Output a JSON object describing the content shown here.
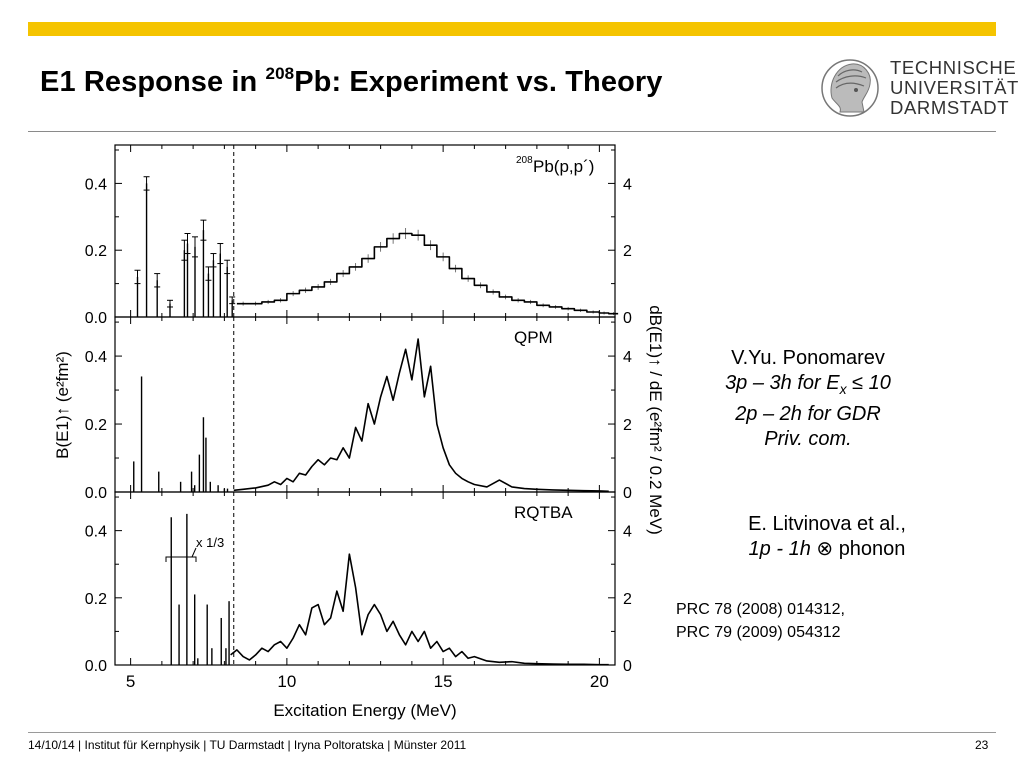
{
  "slide": {
    "title_pre": "E1 Response in ",
    "title_sup": "208",
    "title_post": "Pb: Experiment vs. Theory",
    "footer": "14/10/14 | Institut für Kernphysik | TU Darmstadt | Iryna Poltoratska | Münster 2011",
    "page": "23",
    "accent_color": "#f5c400"
  },
  "logo": {
    "icon": "athena-head-icon",
    "lines": [
      "TECHNISCHE",
      "UNIVERSITÄT",
      "DARMSTADT"
    ]
  },
  "notes": {
    "ponomarev": {
      "name": "V.Yu. Ponomarev",
      "line2_pre": "3p – 3h for E",
      "line2_sub": "x",
      "line2_post": " ≤ 10",
      "line3": "2p – 2h for GDR",
      "line4": "Priv. com."
    },
    "litvinova": {
      "name": "E. Litvinova et al.,",
      "line2_italic": "1p - 1h",
      "line2_symbol": " ⊗ ",
      "line2_post": "phonon"
    },
    "refs": [
      "PRC 78 (2008) 014312,",
      "PRC 79 (2009) 054312"
    ]
  },
  "chart_data": {
    "type": "bar",
    "xlabel": "Excitation Energy (MeV)",
    "ylabel_left": "B(E1)↑ (e²fm²)",
    "ylabel_right": "dB(E1)↑ / dE  (e²fm² / 0.2 MeV)",
    "xlim": [
      4.5,
      20.5
    ],
    "xticks": [
      "5",
      "10",
      "15",
      "20"
    ],
    "ylim_left": [
      0,
      0.5
    ],
    "ylim_right": [
      0,
      5
    ],
    "yticks_left": [
      "0.0",
      "0.2",
      "0.4"
    ],
    "yticks_right": [
      "0",
      "2",
      "4"
    ],
    "threshold_energy": 8.3,
    "panels": [
      {
        "label_sup": "208",
        "label": "Pb(p,p´)",
        "discrete_bars": [
          {
            "x": 5.22,
            "y": 0.12,
            "err": 0.02
          },
          {
            "x": 5.51,
            "y": 0.4,
            "err": 0.02
          },
          {
            "x": 5.85,
            "y": 0.11,
            "err": 0.02
          },
          {
            "x": 6.26,
            "y": 0.04,
            "err": 0.01
          },
          {
            "x": 6.72,
            "y": 0.2,
            "err": 0.03
          },
          {
            "x": 6.82,
            "y": 0.22,
            "err": 0.03
          },
          {
            "x": 7.06,
            "y": 0.21,
            "err": 0.03
          },
          {
            "x": 7.33,
            "y": 0.26,
            "err": 0.03
          },
          {
            "x": 7.49,
            "y": 0.13,
            "err": 0.02
          },
          {
            "x": 7.65,
            "y": 0.17,
            "err": 0.02
          },
          {
            "x": 7.87,
            "y": 0.19,
            "err": 0.03
          },
          {
            "x": 8.09,
            "y": 0.15,
            "err": 0.02
          },
          {
            "x": 8.25,
            "y": 0.05,
            "err": 0.01
          }
        ],
        "continuum": {
          "x": [
            8.4,
            8.8,
            9.2,
            9.6,
            10.0,
            10.4,
            10.8,
            11.2,
            11.6,
            12.0,
            12.4,
            12.8,
            13.2,
            13.6,
            14.0,
            14.4,
            14.8,
            15.2,
            15.6,
            16.0,
            16.4,
            16.8,
            17.2,
            17.6,
            18.0,
            18.4,
            18.8,
            19.2,
            19.6,
            20.0,
            20.3
          ],
          "y": [
            0.4,
            0.4,
            0.45,
            0.5,
            0.7,
            0.8,
            0.9,
            1.05,
            1.3,
            1.5,
            1.75,
            2.1,
            2.35,
            2.5,
            2.45,
            2.15,
            1.8,
            1.45,
            1.15,
            0.95,
            0.75,
            0.6,
            0.5,
            0.45,
            0.35,
            0.3,
            0.25,
            0.2,
            0.15,
            0.12,
            0.1
          ]
        }
      },
      {
        "label": "QPM",
        "discrete_bars": [
          {
            "x": 5.1,
            "y": 0.09
          },
          {
            "x": 5.35,
            "y": 0.34
          },
          {
            "x": 5.9,
            "y": 0.06
          },
          {
            "x": 6.6,
            "y": 0.03
          },
          {
            "x": 6.95,
            "y": 0.06
          },
          {
            "x": 7.05,
            "y": 0.02
          },
          {
            "x": 7.2,
            "y": 0.11
          },
          {
            "x": 7.33,
            "y": 0.22
          },
          {
            "x": 7.41,
            "y": 0.16
          },
          {
            "x": 7.55,
            "y": 0.03
          },
          {
            "x": 7.8,
            "y": 0.02
          },
          {
            "x": 8.0,
            "y": 0.01
          },
          {
            "x": 8.1,
            "y": 0.01
          }
        ],
        "continuum": {
          "x": [
            8.3,
            8.6,
            9.0,
            9.4,
            9.6,
            9.8,
            10.0,
            10.2,
            10.4,
            10.6,
            10.8,
            11.0,
            11.2,
            11.4,
            11.6,
            11.8,
            12.0,
            12.2,
            12.4,
            12.6,
            12.8,
            13.0,
            13.2,
            13.4,
            13.6,
            13.8,
            14.0,
            14.2,
            14.4,
            14.6,
            14.8,
            15.0,
            15.2,
            15.4,
            15.6,
            15.8,
            16.0,
            16.4,
            16.8,
            17.2,
            17.6,
            18.0,
            18.5,
            19.0,
            19.5,
            20.0,
            20.3
          ],
          "y": [
            0.05,
            0.08,
            0.12,
            0.2,
            0.3,
            0.22,
            0.4,
            0.3,
            0.55,
            0.5,
            0.75,
            0.95,
            0.8,
            1.0,
            0.95,
            1.3,
            1.0,
            1.9,
            1.5,
            2.6,
            2.0,
            2.8,
            3.4,
            2.7,
            3.5,
            4.2,
            3.3,
            4.5,
            2.8,
            3.7,
            2.0,
            1.3,
            0.8,
            0.55,
            0.4,
            0.3,
            0.22,
            0.15,
            0.35,
            0.15,
            0.1,
            0.08,
            0.06,
            0.05,
            0.04,
            0.03,
            0.02
          ]
        }
      },
      {
        "label": "RQTBA",
        "annotation": "x 1/3",
        "discrete_bars": [
          {
            "x": 6.3,
            "y": 0.44
          },
          {
            "x": 6.55,
            "y": 0.18
          },
          {
            "x": 6.8,
            "y": 0.45
          },
          {
            "x": 7.05,
            "y": 0.21
          },
          {
            "x": 7.15,
            "y": 0.02
          },
          {
            "x": 7.45,
            "y": 0.18
          },
          {
            "x": 7.6,
            "y": 0.05
          },
          {
            "x": 7.9,
            "y": 0.14
          },
          {
            "x": 8.05,
            "y": 0.05
          },
          {
            "x": 8.15,
            "y": 0.19
          }
        ],
        "continuum": {
          "x": [
            8.2,
            8.4,
            8.6,
            8.8,
            9.0,
            9.2,
            9.4,
            9.6,
            9.8,
            10.0,
            10.2,
            10.4,
            10.6,
            10.8,
            11.0,
            11.2,
            11.4,
            11.6,
            11.8,
            12.0,
            12.2,
            12.4,
            12.6,
            12.8,
            13.0,
            13.2,
            13.4,
            13.6,
            13.8,
            14.0,
            14.2,
            14.4,
            14.6,
            14.8,
            15.0,
            15.2,
            15.4,
            15.6,
            15.8,
            16.0,
            16.4,
            16.8,
            17.2,
            17.6,
            18.0,
            18.5,
            19.0,
            19.5,
            20.0,
            20.3
          ],
          "y": [
            0.3,
            0.45,
            0.25,
            0.15,
            0.3,
            0.5,
            0.4,
            0.6,
            0.7,
            0.5,
            0.8,
            1.2,
            0.9,
            1.7,
            1.8,
            1.2,
            1.4,
            2.2,
            1.6,
            3.3,
            2.3,
            0.9,
            1.5,
            1.8,
            1.5,
            1.0,
            1.3,
            0.9,
            0.6,
            1.0,
            0.7,
            1.0,
            0.5,
            0.7,
            0.4,
            0.5,
            0.25,
            0.4,
            0.2,
            0.25,
            0.12,
            0.08,
            0.1,
            0.05,
            0.04,
            0.03,
            0.02,
            0.02,
            0.01,
            0.01
          ]
        }
      }
    ]
  }
}
